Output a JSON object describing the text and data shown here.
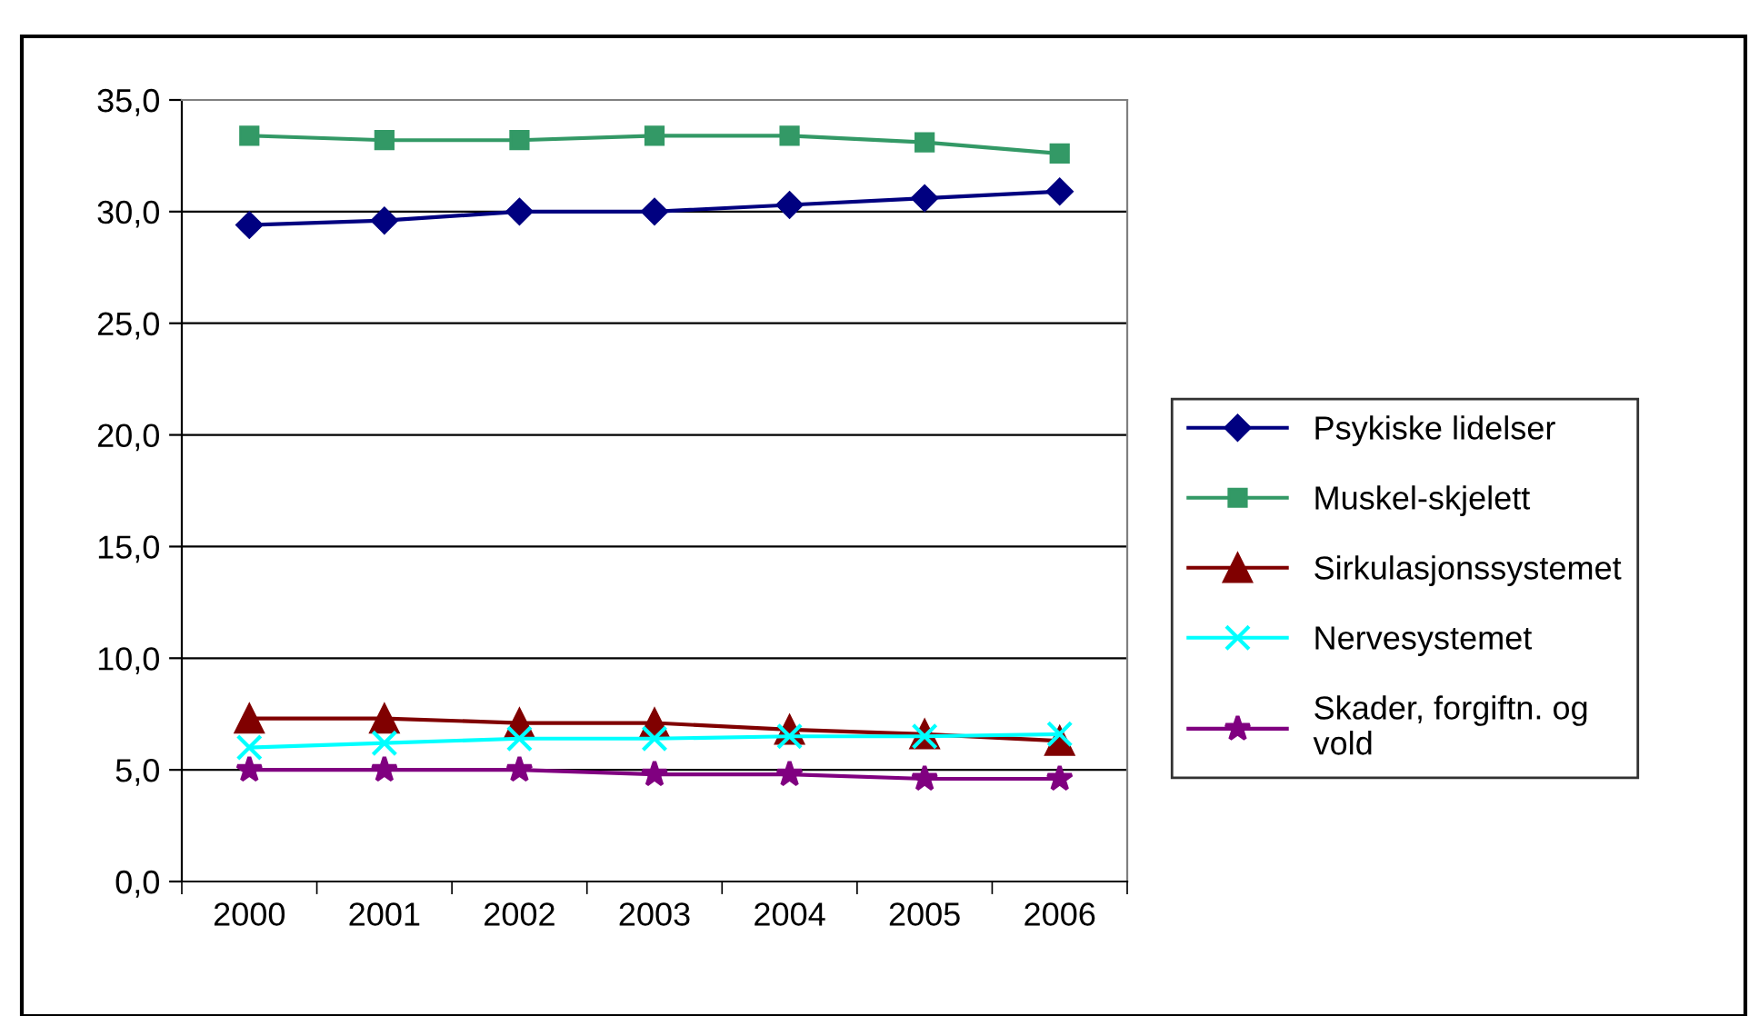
{
  "chart_data": {
    "type": "line",
    "categories": [
      "2000",
      "2001",
      "2002",
      "2003",
      "2004",
      "2005",
      "2006"
    ],
    "ylim": [
      0,
      35
    ],
    "yticks": [
      {
        "value": 0,
        "label": "0,0"
      },
      {
        "value": 5,
        "label": "5,0"
      },
      {
        "value": 10,
        "label": "10,0"
      },
      {
        "value": 15,
        "label": "15,0"
      },
      {
        "value": 20,
        "label": "20,0"
      },
      {
        "value": 25,
        "label": "25,0"
      },
      {
        "value": 30,
        "label": "30,0"
      },
      {
        "value": 35,
        "label": "35,0"
      }
    ],
    "grid": "y",
    "legend": "right",
    "series": [
      {
        "name": "Psykiske lidelser",
        "color": "#000080",
        "marker": "diamond",
        "values": [
          29.4,
          29.6,
          30.0,
          30.0,
          30.3,
          30.6,
          30.9
        ]
      },
      {
        "name": "Muskel-skjelett",
        "color": "#339966",
        "marker": "square",
        "values": [
          33.4,
          33.2,
          33.2,
          33.4,
          33.4,
          33.1,
          32.6
        ]
      },
      {
        "name": "Sirkulasjonssystemet",
        "color": "#800000",
        "marker": "triangle",
        "values": [
          7.3,
          7.3,
          7.1,
          7.1,
          6.8,
          6.6,
          6.3
        ]
      },
      {
        "name": "Nervesystemet",
        "color": "#00ffff",
        "marker": "cross",
        "values": [
          6.0,
          6.2,
          6.4,
          6.4,
          6.5,
          6.5,
          6.6
        ]
      },
      {
        "name": "Skader, forgiftn. og\nvold",
        "color": "#800080",
        "marker": "star",
        "values": [
          5.0,
          5.0,
          5.0,
          4.8,
          4.8,
          4.6,
          4.6
        ]
      }
    ]
  }
}
